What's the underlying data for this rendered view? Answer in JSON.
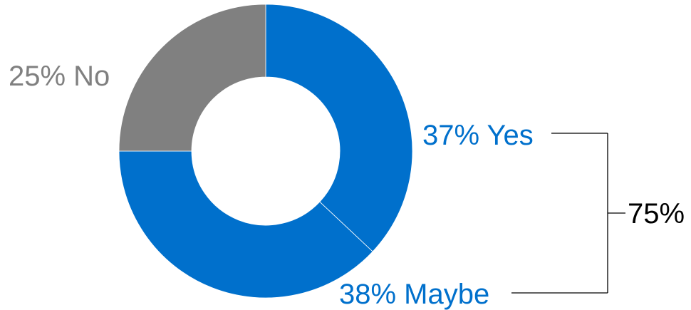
{
  "chart_data": {
    "type": "pie",
    "variant": "donut",
    "title": "",
    "categories": [
      "Yes",
      "Maybe",
      "No"
    ],
    "values": [
      37,
      38,
      25
    ],
    "slice_labels": [
      "37% Yes",
      "38% Maybe",
      "25% No"
    ],
    "colors": [
      "#0070CC",
      "#0070CC",
      "#808080"
    ],
    "label_colors": [
      "#0070CC",
      "#0070CC",
      "#808080"
    ],
    "annotation": {
      "text": "75%",
      "groups": [
        "Yes",
        "Maybe"
      ],
      "color": "#000000",
      "connector_color": "#000000"
    },
    "slice_separator_color": "#ffffff"
  }
}
